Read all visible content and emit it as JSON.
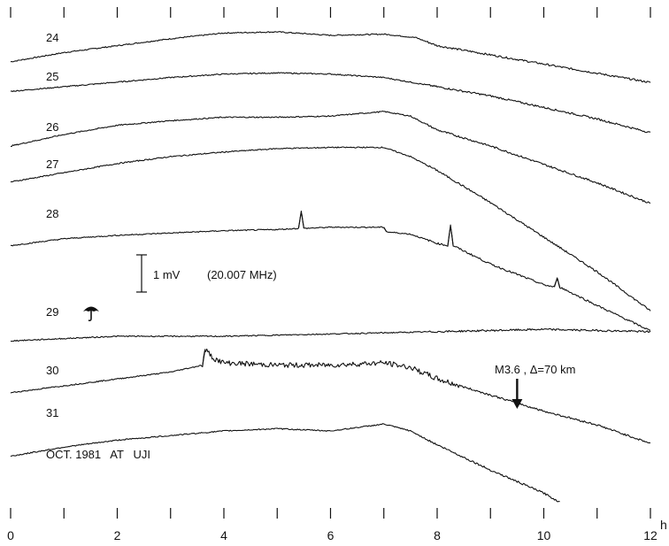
{
  "chart_data": {
    "type": "line",
    "title": "",
    "xlabel": "",
    "ylabel": "",
    "x_unit": "h",
    "xlim": [
      0,
      12
    ],
    "x_ticks": [
      0,
      1,
      2,
      3,
      4,
      5,
      6,
      7,
      8,
      9,
      10,
      11,
      12
    ],
    "x_tick_labels": [
      "0",
      "2",
      "4",
      "6",
      "8",
      "10",
      "12"
    ],
    "grid": false,
    "scale_bar": {
      "label": "1 mV",
      "frequency": "(20.007 MHz)"
    },
    "caption": "OCT. 1981   AT   UJI",
    "weather_symbol": {
      "day": "29",
      "icon": "umbrella-icon"
    },
    "annotation": {
      "text": "M3.6 , Δ=70 km",
      "x": 9.5
    },
    "series": [
      {
        "name": "24",
        "offset": 0,
        "x": [
          0,
          1,
          2,
          3,
          4,
          5,
          6,
          7,
          7.6,
          8,
          9,
          10,
          11,
          12
        ],
        "values": [
          -0.3,
          0.1,
          0.4,
          0.7,
          0.95,
          1.0,
          0.85,
          0.9,
          0.75,
          0.4,
          0.0,
          -0.4,
          -0.8,
          -1.2
        ]
      },
      {
        "name": "25",
        "offset": 0,
        "x": [
          0,
          1,
          2,
          3,
          4,
          5,
          6,
          7,
          8,
          9,
          10,
          11,
          12
        ],
        "values": [
          -0.2,
          0.0,
          0.2,
          0.4,
          0.55,
          0.6,
          0.55,
          0.4,
          0.0,
          -0.4,
          -0.9,
          -1.4,
          -2.0
        ]
      },
      {
        "name": "26",
        "offset": 0,
        "x": [
          0,
          1,
          2,
          3,
          4,
          5,
          6,
          7,
          7.5,
          8,
          9,
          10,
          11,
          12
        ],
        "values": [
          -0.5,
          0.0,
          0.4,
          0.6,
          0.75,
          0.75,
          0.8,
          1.0,
          0.8,
          0.2,
          -0.5,
          -1.3,
          -2.1,
          -3.0
        ]
      },
      {
        "name": "27",
        "offset": 0,
        "x": [
          0,
          1,
          2,
          3,
          4,
          5,
          6,
          7,
          7.5,
          8,
          9,
          10,
          11,
          12
        ],
        "values": [
          -0.6,
          -0.2,
          0.2,
          0.5,
          0.7,
          0.85,
          0.9,
          0.9,
          0.5,
          -0.1,
          -1.5,
          -3.0,
          -4.5,
          -6.2
        ]
      },
      {
        "name": "28",
        "offset": 0,
        "x": [
          0,
          1,
          2,
          3,
          4,
          5,
          5.4,
          5.45,
          5.5,
          6,
          7,
          7.05,
          7.5,
          8,
          8.2,
          8.25,
          8.3,
          9,
          10,
          10.2,
          10.25,
          10.3,
          11,
          12
        ],
        "values": [
          -0.6,
          -0.3,
          -0.15,
          -0.05,
          0.05,
          0.1,
          0.15,
          0.9,
          0.15,
          0.2,
          0.2,
          0.0,
          -0.1,
          -0.5,
          -0.6,
          0.3,
          -0.6,
          -1.4,
          -2.3,
          -2.4,
          -2.0,
          -2.4,
          -3.2,
          -4.3
        ]
      },
      {
        "name": "29",
        "offset": 0,
        "x": [
          0,
          2,
          4,
          6,
          8,
          10,
          12
        ],
        "values": [
          -0.2,
          0.0,
          0.0,
          0.1,
          0.2,
          0.3,
          0.2
        ]
      },
      {
        "name": "30",
        "offset": 0,
        "x": [
          0,
          1,
          2,
          3,
          3.6,
          3.65,
          3.8,
          4,
          5,
          6,
          7,
          7.5,
          8,
          9,
          10,
          11,
          12
        ],
        "values": [
          -0.3,
          0.0,
          0.3,
          0.6,
          0.9,
          1.6,
          1.2,
          1.0,
          0.9,
          0.9,
          1.0,
          0.8,
          0.3,
          -0.4,
          -1.1,
          -1.7,
          -2.5
        ]
      },
      {
        "name": "31",
        "offset": 0,
        "x": [
          0,
          1,
          2,
          3,
          4,
          5,
          6,
          7,
          7.5,
          8,
          9,
          10,
          10.3
        ],
        "values": [
          -0.6,
          -0.2,
          0.1,
          0.3,
          0.5,
          0.6,
          0.5,
          0.8,
          0.5,
          -0.1,
          -1.2,
          -2.2,
          -2.6
        ]
      }
    ]
  }
}
